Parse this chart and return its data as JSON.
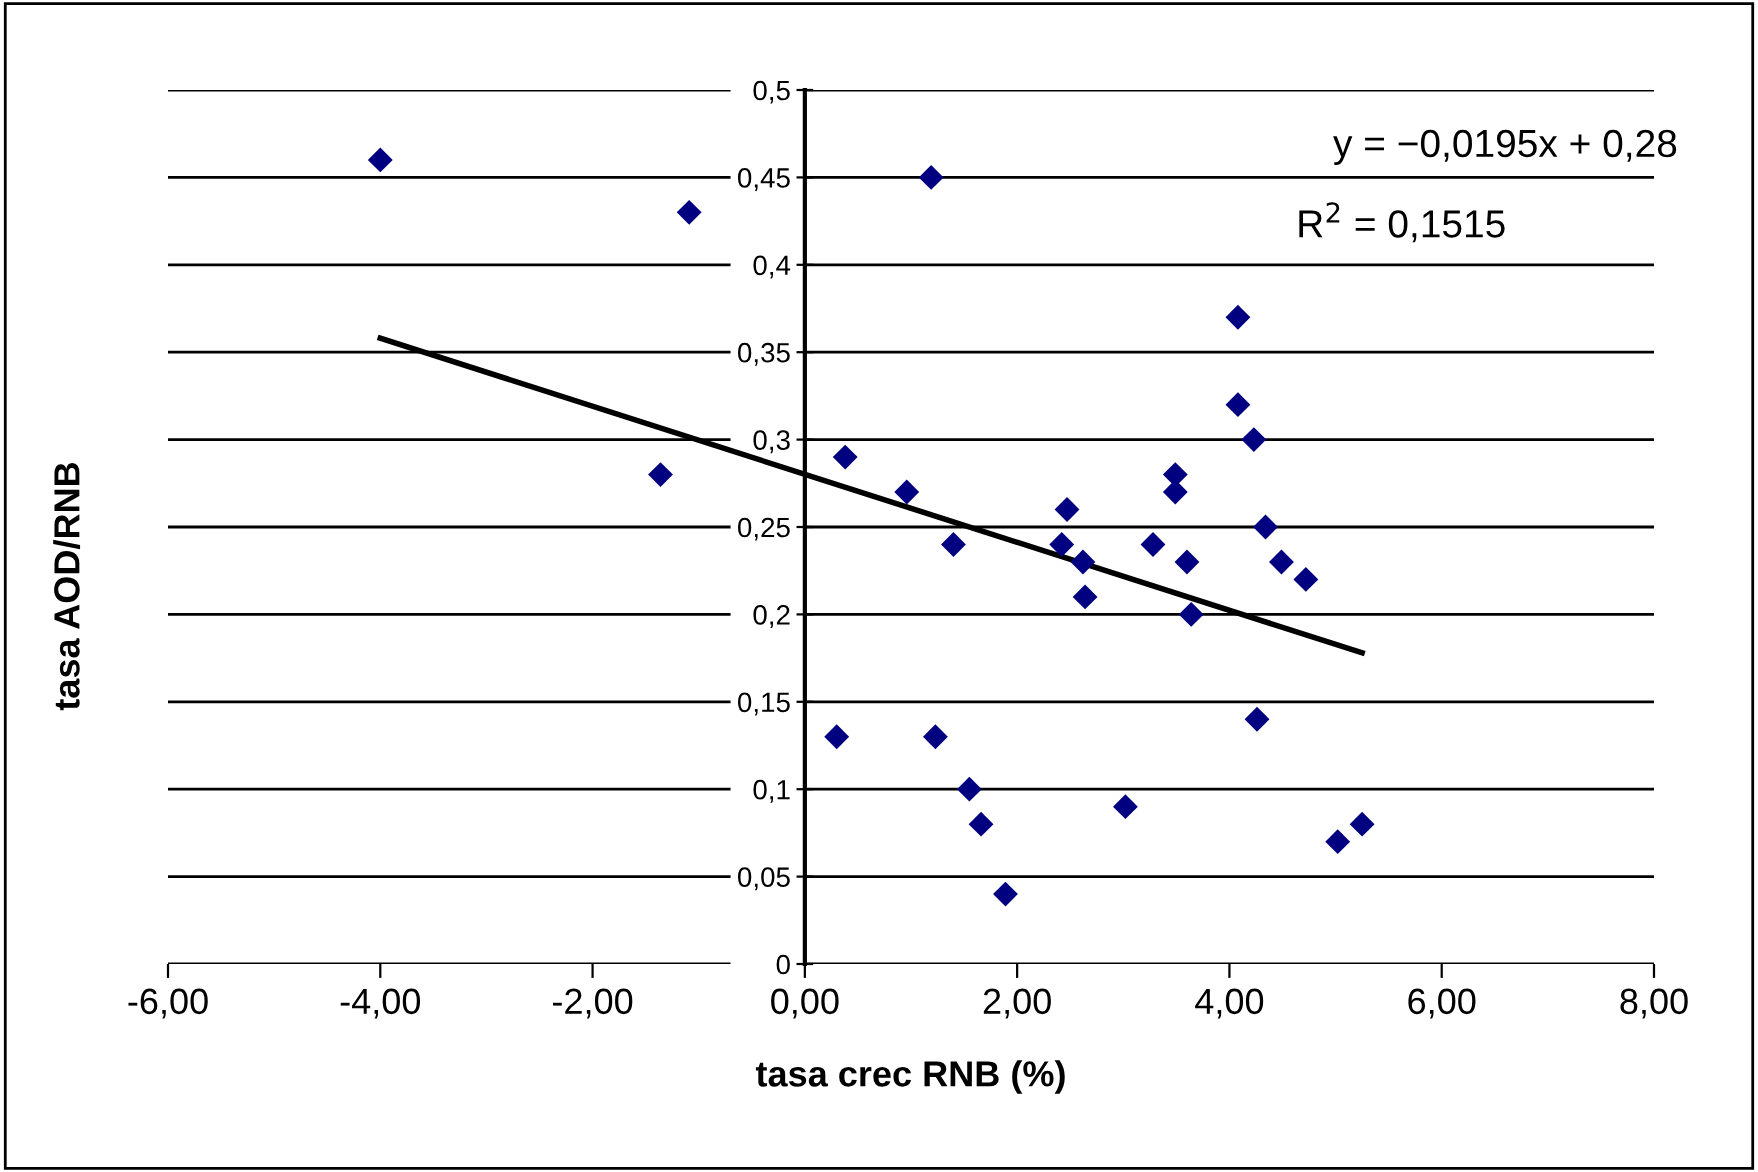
{
  "chart_data": {
    "type": "scatter",
    "xlabel": "tasa crec RNB (%)",
    "ylabel": "tasa AOD/RNB",
    "annotations": [
      "y = −0,0195x + 0,28",
      "R$^{2}$ = 0,1515"
    ],
    "series": [
      {
        "color": "#000080",
        "marker": "diamond",
        "x": [
          -4.0,
          -1.09,
          1.19,
          -1.36,
          0.38,
          0.96,
          1.4,
          2.47,
          2.42,
          2.62,
          2.64,
          0.3,
          1.23,
          1.55,
          1.66,
          1.89,
          3.02,
          3.28,
          3.49,
          3.49,
          3.6,
          3.64,
          4.08,
          4.08,
          4.23,
          4.34,
          4.26,
          4.49,
          4.72,
          5.02,
          5.25
        ],
        "values": [
          0.46,
          0.43,
          0.45,
          0.28,
          0.29,
          0.27,
          0.24,
          0.26,
          0.24,
          0.23,
          0.21,
          0.13,
          0.13,
          0.1,
          0.08,
          0.04,
          0.09,
          0.24,
          0.28,
          0.27,
          0.23,
          0.2,
          0.37,
          0.32,
          0.3,
          0.25,
          0.14,
          0.23,
          0.22,
          0.07,
          0.08
        ]
      },
      {
        "type": "line",
        "color": "#000000",
        "marker": "none",
        "x": [
          -4.0,
          5.25
        ],
        "values": [
          0.358,
          0.178
        ]
      }
    ],
    "xlim": [
      -6,
      8
    ],
    "ylim": [
      0,
      0.5
    ],
    "xticks": [
      {
        "value": -6,
        "label": "-6,00"
      },
      {
        "value": -4,
        "label": "-4,00"
      },
      {
        "value": -2,
        "label": "-2,00"
      },
      {
        "value": 0,
        "label": "0,00"
      },
      {
        "value": 2,
        "label": "2,00"
      },
      {
        "value": 4,
        "label": "4,00"
      },
      {
        "value": 6,
        "label": "6,00"
      },
      {
        "value": 8,
        "label": "8,00"
      }
    ],
    "yticks": [
      {
        "value": 0,
        "label": "0"
      },
      {
        "value": 0.05,
        "label": "0,05"
      },
      {
        "value": 0.1,
        "label": "0,1"
      },
      {
        "value": 0.15,
        "label": "0,15"
      },
      {
        "value": 0.2,
        "label": "0,2"
      },
      {
        "value": 0.25,
        "label": "0,25"
      },
      {
        "value": 0.3,
        "label": "0,3"
      },
      {
        "value": 0.35,
        "label": "0,35"
      },
      {
        "value": 0.4,
        "label": "0,4"
      },
      {
        "value": 0.45,
        "label": "0,45"
      },
      {
        "value": 0.5,
        "label": "0,5"
      }
    ],
    "grid": "y",
    "legend": false
  }
}
